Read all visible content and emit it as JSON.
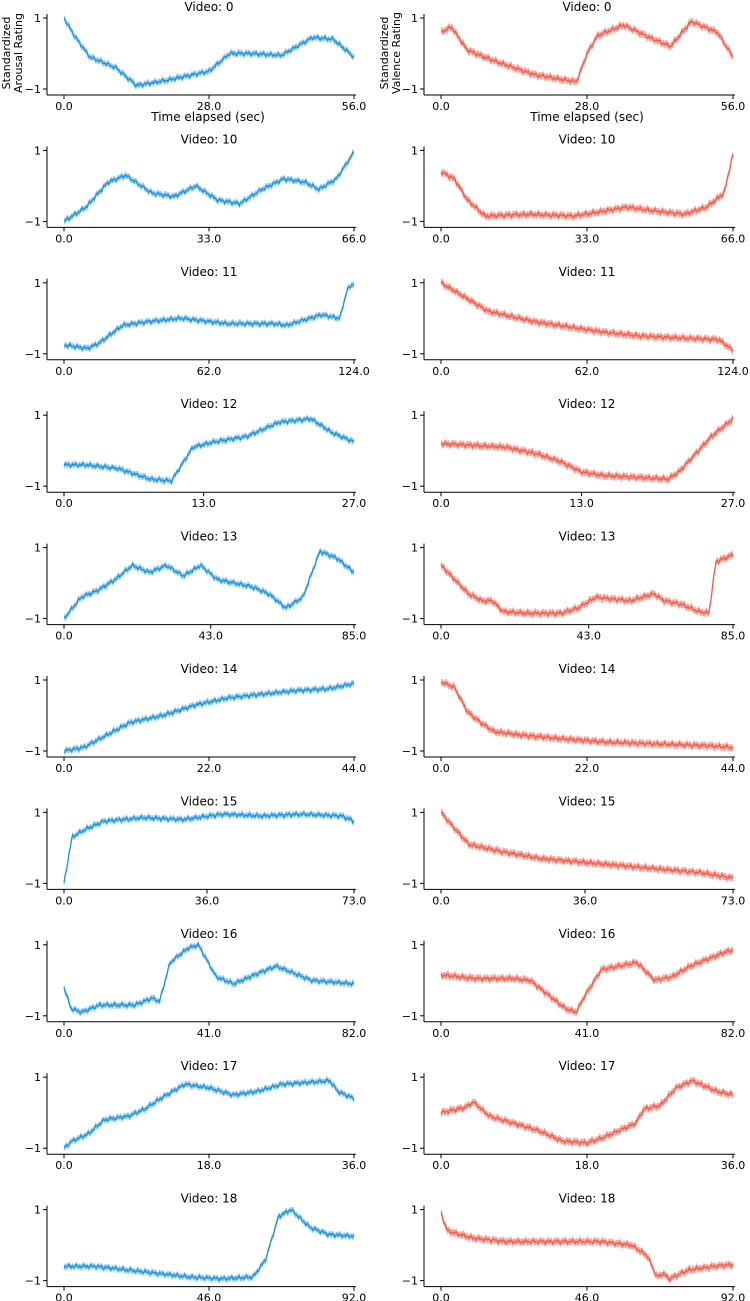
{
  "colors": {
    "arousal": "#1f8fd6",
    "arousal_band": "#7cc4ee",
    "valence": "#f05a4a",
    "valence_band": "#f79a8e"
  },
  "labels": {
    "arousal_ylabel": [
      "Standardized",
      "Arousal Rating"
    ],
    "valence_ylabel": [
      "Standardized",
      "Valence Rating"
    ],
    "xlabel": "Time elapsed (sec)"
  },
  "chart_data": [
    {
      "type": "line",
      "title": "Video: 0",
      "measure": "arousal",
      "ylim": [
        -1,
        1
      ],
      "yticks": [
        1,
        -1
      ],
      "xticks": [
        "0.0",
        "28.0",
        "56.0"
      ],
      "duration": 56,
      "x": [
        0,
        2,
        5,
        10,
        14,
        20,
        28,
        32,
        36,
        42,
        48,
        52,
        56
      ],
      "y": [
        1,
        0.5,
        -0.1,
        -0.4,
        -0.9,
        -0.75,
        -0.5,
        0,
        0,
        -0.05,
        0.45,
        0.4,
        -0.1
      ]
    },
    {
      "type": "line",
      "title": "Video: 0",
      "measure": "valence",
      "ylim": [
        -1,
        1
      ],
      "yticks": [
        1,
        -1
      ],
      "xticks": [
        "0.0",
        "28.0",
        "56.0"
      ],
      "duration": 56,
      "x": [
        0,
        2,
        5,
        10,
        18,
        26,
        28,
        30,
        35,
        40,
        44,
        48,
        53,
        56
      ],
      "y": [
        0.6,
        0.75,
        0.1,
        -0.2,
        -0.6,
        -0.8,
        0,
        0.5,
        0.8,
        0.45,
        0.2,
        0.9,
        0.6,
        -0.1
      ]
    },
    {
      "type": "line",
      "title": "Video: 10",
      "measure": "arousal",
      "ylim": [
        -1,
        1
      ],
      "yticks": [
        1,
        -1
      ],
      "xticks": [
        "0.0",
        "33.0",
        "66.0"
      ],
      "duration": 66,
      "x": [
        0,
        5,
        10,
        14,
        20,
        25,
        30,
        35,
        40,
        45,
        50,
        55,
        58,
        62,
        66
      ],
      "y": [
        -1,
        -0.6,
        0.1,
        0.3,
        -0.2,
        -0.3,
        0,
        -0.4,
        -0.5,
        -0.1,
        0.2,
        0.1,
        -0.1,
        0.2,
        0.95
      ]
    },
    {
      "type": "line",
      "title": "Video: 10",
      "measure": "valence",
      "ylim": [
        -1,
        1
      ],
      "yticks": [
        1,
        -1
      ],
      "xticks": [
        "0.0",
        "33.0",
        "66.0"
      ],
      "duration": 66,
      "x": [
        0,
        3,
        6,
        10,
        20,
        30,
        35,
        42,
        48,
        55,
        60,
        64,
        66
      ],
      "y": [
        0.4,
        0.2,
        -0.4,
        -0.85,
        -0.8,
        -0.85,
        -0.75,
        -0.6,
        -0.7,
        -0.8,
        -0.6,
        -0.2,
        0.9
      ]
    },
    {
      "type": "line",
      "title": "Video: 11",
      "measure": "arousal",
      "ylim": [
        -1,
        1
      ],
      "yticks": [
        1,
        -1
      ],
      "xticks": [
        "0.0",
        "62.0",
        "124.0"
      ],
      "duration": 124,
      "x": [
        0,
        5,
        10,
        15,
        20,
        25,
        35,
        50,
        70,
        90,
        95,
        105,
        110,
        118,
        121,
        124
      ],
      "y": [
        -0.75,
        -0.8,
        -0.85,
        -0.7,
        -0.45,
        -0.2,
        -0.1,
        0,
        -0.15,
        -0.15,
        -0.2,
        0,
        0.1,
        0,
        0.8,
        1
      ]
    },
    {
      "type": "line",
      "title": "Video: 11",
      "measure": "valence",
      "ylim": [
        -1,
        1
      ],
      "yticks": [
        1,
        -1
      ],
      "xticks": [
        "0.0",
        "62.0",
        "124.0"
      ],
      "duration": 124,
      "x": [
        0,
        10,
        20,
        30,
        40,
        55,
        70,
        85,
        100,
        118,
        124
      ],
      "y": [
        1,
        0.6,
        0.2,
        0.05,
        -0.1,
        -0.25,
        -0.4,
        -0.5,
        -0.55,
        -0.6,
        -0.9
      ]
    },
    {
      "type": "line",
      "title": "Video: 12",
      "measure": "arousal",
      "ylim": [
        -1,
        1
      ],
      "yticks": [
        1,
        -1
      ],
      "xticks": [
        "0.0",
        "13.0",
        "27.0"
      ],
      "duration": 27,
      "x": [
        0,
        2,
        5,
        8,
        10,
        12,
        14,
        17,
        20,
        23,
        25,
        27
      ],
      "y": [
        -0.4,
        -0.4,
        -0.5,
        -0.8,
        -0.85,
        0.1,
        0.25,
        0.4,
        0.8,
        0.9,
        0.5,
        0.25
      ]
    },
    {
      "type": "line",
      "title": "Video: 12",
      "measure": "valence",
      "ylim": [
        -1,
        1
      ],
      "yticks": [
        1,
        -1
      ],
      "xticks": [
        "0.0",
        "13.0",
        "27.0"
      ],
      "duration": 27,
      "x": [
        0,
        3,
        6,
        9,
        11,
        13,
        15,
        18,
        21,
        22,
        25,
        27
      ],
      "y": [
        0.2,
        0.15,
        0.1,
        -0.1,
        -0.3,
        -0.6,
        -0.7,
        -0.75,
        -0.8,
        -0.6,
        0.4,
        0.9
      ]
    },
    {
      "type": "line",
      "title": "Video: 13",
      "measure": "arousal",
      "ylim": [
        -1,
        1
      ],
      "yticks": [
        1,
        -1
      ],
      "xticks": [
        "0.0",
        "43.0",
        "85.0"
      ],
      "duration": 85,
      "x": [
        0,
        5,
        10,
        15,
        20,
        25,
        30,
        35,
        40,
        45,
        55,
        60,
        65,
        70,
        75,
        80,
        85
      ],
      "y": [
        -1,
        -0.4,
        -0.2,
        0.1,
        0.5,
        0.3,
        0.5,
        0.2,
        0.5,
        0.1,
        -0.1,
        -0.3,
        -0.7,
        -0.4,
        0.9,
        0.7,
        0.3
      ]
    },
    {
      "type": "line",
      "title": "Video: 13",
      "measure": "valence",
      "ylim": [
        -1,
        1
      ],
      "yticks": [
        1,
        -1
      ],
      "xticks": [
        "0.0",
        "43.0",
        "85.0"
      ],
      "duration": 85,
      "x": [
        0,
        3,
        8,
        12,
        15,
        18,
        25,
        35,
        40,
        45,
        55,
        62,
        65,
        70,
        75,
        78,
        80,
        85
      ],
      "y": [
        0.5,
        0.2,
        -0.3,
        -0.5,
        -0.5,
        -0.8,
        -0.85,
        -0.85,
        -0.7,
        -0.4,
        -0.5,
        -0.3,
        -0.5,
        -0.6,
        -0.8,
        -0.85,
        0.6,
        0.8
      ]
    },
    {
      "type": "line",
      "title": "Video: 14",
      "measure": "arousal",
      "ylim": [
        -1,
        1
      ],
      "yticks": [
        1,
        -1
      ],
      "xticks": [
        "0.0",
        "22.0",
        "44.0"
      ],
      "duration": 44,
      "x": [
        0,
        3,
        6,
        10,
        15,
        20,
        25,
        30,
        35,
        40,
        44
      ],
      "y": [
        -1,
        -0.9,
        -0.6,
        -0.2,
        0,
        0.3,
        0.5,
        0.6,
        0.7,
        0.75,
        0.9
      ]
    },
    {
      "type": "line",
      "title": "Video: 14",
      "measure": "valence",
      "ylim": [
        -1,
        1
      ],
      "yticks": [
        1,
        -1
      ],
      "xticks": [
        "0.0",
        "22.0",
        "44.0"
      ],
      "duration": 44,
      "x": [
        0,
        2,
        4,
        6,
        8,
        12,
        18,
        25,
        32,
        40,
        44
      ],
      "y": [
        0.95,
        0.8,
        0.1,
        -0.2,
        -0.45,
        -0.55,
        -0.65,
        -0.75,
        -0.8,
        -0.85,
        -0.9
      ]
    },
    {
      "type": "line",
      "title": "Video: 15",
      "measure": "arousal",
      "ylim": [
        -1,
        1
      ],
      "yticks": [
        1,
        -1
      ],
      "xticks": [
        "0.0",
        "36.0",
        "73.0"
      ],
      "duration": 73,
      "x": [
        0,
        2,
        5,
        10,
        20,
        30,
        40,
        50,
        60,
        70,
        73
      ],
      "y": [
        -1,
        0.3,
        0.5,
        0.75,
        0.85,
        0.8,
        0.95,
        0.9,
        0.95,
        0.9,
        0.75
      ]
    },
    {
      "type": "line",
      "title": "Video: 15",
      "measure": "valence",
      "ylim": [
        -1,
        1
      ],
      "yticks": [
        1,
        -1
      ],
      "xticks": [
        "0.0",
        "36.0",
        "73.0"
      ],
      "duration": 73,
      "x": [
        0,
        3,
        7,
        15,
        25,
        35,
        45,
        55,
        65,
        73
      ],
      "y": [
        1,
        0.6,
        0.1,
        -0.1,
        -0.3,
        -0.4,
        -0.5,
        -0.6,
        -0.7,
        -0.85
      ]
    },
    {
      "type": "line",
      "title": "Video: 16",
      "measure": "arousal",
      "ylim": [
        -1,
        1
      ],
      "yticks": [
        1,
        -1
      ],
      "xticks": [
        "0.0",
        "41.0",
        "82.0"
      ],
      "duration": 82,
      "x": [
        0,
        2,
        5,
        10,
        20,
        25,
        27,
        30,
        35,
        38,
        43,
        48,
        55,
        60,
        70,
        82
      ],
      "y": [
        -0.2,
        -0.8,
        -0.9,
        -0.7,
        -0.7,
        -0.5,
        -0.6,
        0.5,
        0.9,
        1,
        0.1,
        -0.1,
        0.2,
        0.4,
        0,
        -0.1
      ]
    },
    {
      "type": "line",
      "title": "Video: 16",
      "measure": "valence",
      "ylim": [
        -1,
        1
      ],
      "yticks": [
        1,
        -1
      ],
      "xticks": [
        "0.0",
        "41.0",
        "82.0"
      ],
      "duration": 82,
      "x": [
        0,
        10,
        20,
        25,
        30,
        35,
        38,
        40,
        45,
        50,
        55,
        60,
        65,
        70,
        75,
        80,
        82
      ],
      "y": [
        0.15,
        0.05,
        0.05,
        0,
        -0.4,
        -0.8,
        -0.9,
        -0.5,
        0.3,
        0.4,
        0.5,
        0,
        0.1,
        0.4,
        0.6,
        0.8,
        0.85
      ]
    },
    {
      "type": "line",
      "title": "Video: 17",
      "measure": "arousal",
      "ylim": [
        -1,
        1
      ],
      "yticks": [
        1,
        -1
      ],
      "xticks": [
        "0.0",
        "18.0",
        "36.0"
      ],
      "duration": 36,
      "x": [
        0,
        1,
        3,
        5,
        8,
        10,
        12,
        15,
        18,
        21,
        24,
        27,
        30,
        33,
        34,
        36
      ],
      "y": [
        -1,
        -0.8,
        -0.6,
        -0.2,
        -0.1,
        0.1,
        0.4,
        0.8,
        0.7,
        0.5,
        0.6,
        0.8,
        0.85,
        0.9,
        0.6,
        0.4
      ]
    },
    {
      "type": "line",
      "title": "Video: 17",
      "measure": "valence",
      "ylim": [
        -1,
        1
      ],
      "yticks": [
        1,
        -1
      ],
      "xticks": [
        "0.0",
        "18.0",
        "36.0"
      ],
      "duration": 36,
      "x": [
        0,
        3,
        4,
        6,
        9,
        12,
        15,
        18,
        20,
        22,
        24,
        25,
        27,
        29,
        31,
        34,
        36
      ],
      "y": [
        0,
        0.15,
        0.3,
        -0.1,
        -0.3,
        -0.5,
        -0.8,
        -0.85,
        -0.7,
        -0.5,
        -0.3,
        0.1,
        0.2,
        0.7,
        0.9,
        0.6,
        0.5
      ]
    },
    {
      "type": "line",
      "title": "Video: 18",
      "measure": "arousal",
      "ylim": [
        -1,
        1
      ],
      "yticks": [
        1,
        -1
      ],
      "xticks": [
        "0.0",
        "46.0",
        "92.0"
      ],
      "duration": 92,
      "x": [
        0,
        10,
        20,
        30,
        40,
        50,
        60,
        64,
        68,
        72,
        78,
        84,
        92
      ],
      "y": [
        -0.6,
        -0.6,
        -0.7,
        -0.8,
        -0.9,
        -0.95,
        -0.9,
        -0.4,
        0.8,
        1,
        0.5,
        0.3,
        0.25
      ]
    },
    {
      "type": "line",
      "title": "Video: 18",
      "measure": "valence",
      "ylim": [
        -1,
        1
      ],
      "yticks": [
        1,
        -1
      ],
      "xticks": [
        "0.0",
        "46.0",
        "92.0"
      ],
      "duration": 92,
      "x": [
        0,
        2,
        10,
        20,
        30,
        40,
        50,
        60,
        65,
        68,
        70,
        72,
        78,
        86,
        92
      ],
      "y": [
        0.9,
        0.4,
        0.2,
        0.1,
        0.1,
        0.1,
        0.1,
        0,
        -0.3,
        -0.9,
        -0.8,
        -0.95,
        -0.7,
        -0.6,
        -0.55
      ]
    }
  ]
}
